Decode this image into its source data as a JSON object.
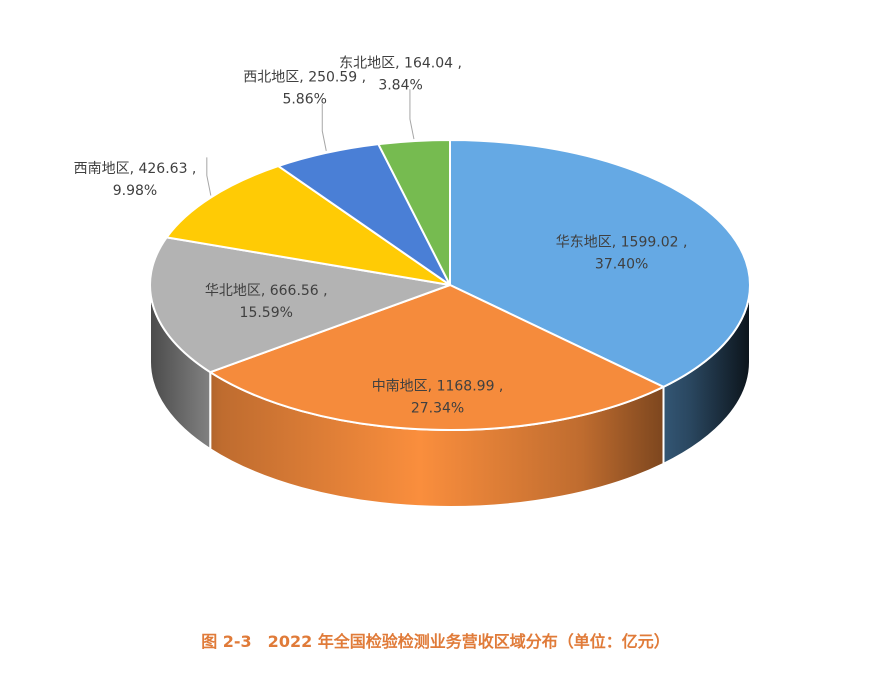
{
  "caption": "图 2-3　2022 年全国检验检测业务营收区域分布（单位：亿元）",
  "chart_data": {
    "type": "pie",
    "title": "",
    "unit": "亿元",
    "slices": [
      {
        "name": "华东地区",
        "value": 1599.02,
        "percent": "37.40%",
        "color": "#65a9e4",
        "value_label": "1599.02"
      },
      {
        "name": "中南地区",
        "value": 1168.99,
        "percent": "27.34%",
        "color": "#f58b3c",
        "value_label": "1168.99"
      },
      {
        "name": "华北地区",
        "value": 666.56,
        "percent": "15.59%",
        "color": "#b3b3b3",
        "value_label": "666.56"
      },
      {
        "name": "西南地区",
        "value": 426.63,
        "percent": "9.98%",
        "color": "#ffcb05",
        "value_label": "426.63"
      },
      {
        "name": "西北地区",
        "value": 250.59,
        "percent": "5.86%",
        "color": "#4a7fd6",
        "value_label": "250.59"
      },
      {
        "name": "东北地区",
        "value": 164.04,
        "percent": "3.84%",
        "color": "#76bb50",
        "value_label": "164.04"
      }
    ]
  }
}
